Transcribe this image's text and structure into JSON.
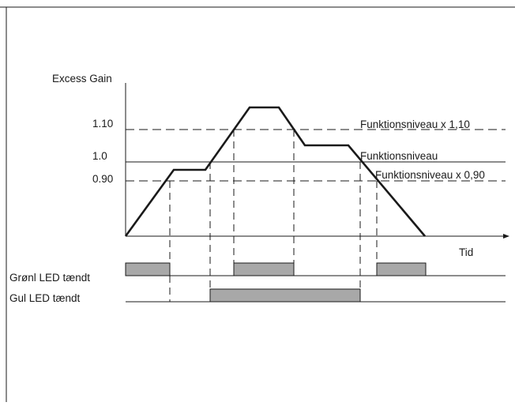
{
  "diagram": {
    "y_axis_label": "Excess Gain",
    "x_axis_label": "Tid",
    "levels": [
      {
        "tick": "1.10",
        "description": "Funktionsniveau x 1,10",
        "style": "dashed"
      },
      {
        "tick": "1.0",
        "description": "Funktionsniveau",
        "style": "solid"
      },
      {
        "tick": "0.90",
        "description": "Funktionsniveau x 0,90",
        "style": "dashed"
      }
    ],
    "signals": [
      {
        "label": "Grønl LED tændt",
        "state": "on while gain ≥ 0.90 level, off above 1.10 level"
      },
      {
        "label": "Gul LED tændt",
        "state": "on while gain ≥ 1.0 level"
      }
    ],
    "colors": {
      "line": "#1a1a1a",
      "pulse_fill": "#a8a8a8"
    }
  }
}
